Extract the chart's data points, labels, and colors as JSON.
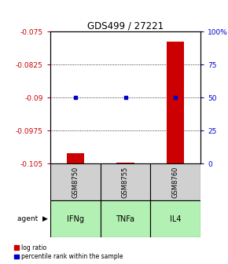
{
  "title": "GDS499 / 27221",
  "samples": [
    "GSM8750",
    "GSM8755",
    "GSM8760"
  ],
  "agents": [
    "IFNg",
    "TNFa",
    "IL4"
  ],
  "log_ratios": [
    -0.1027,
    -0.1048,
    -0.0772
  ],
  "percentiles": [
    50,
    50,
    50
  ],
  "ylim": [
    -0.105,
    -0.075
  ],
  "yticks": [
    -0.105,
    -0.0975,
    -0.09,
    -0.0825,
    -0.075
  ],
  "ytick_labels": [
    "-0.105",
    "-0.0975",
    "-0.09",
    "-0.0825",
    "-0.075"
  ],
  "y2lim": [
    0,
    100
  ],
  "y2ticks": [
    0,
    25,
    50,
    75,
    100
  ],
  "y2tick_labels": [
    "0",
    "25",
    "50",
    "75",
    "100%"
  ],
  "bar_color": "#cc0000",
  "percentile_color": "#0000cc",
  "agent_colors": [
    "#b3f0b3",
    "#b3f0b3",
    "#b3f0b3"
  ],
  "sample_bg": "#d0d0d0",
  "axis_color_left": "#cc0000",
  "axis_color_right": "#0000cc",
  "bar_width": 0.35,
  "legend_items": [
    "log ratio",
    "percentile rank within the sample"
  ]
}
